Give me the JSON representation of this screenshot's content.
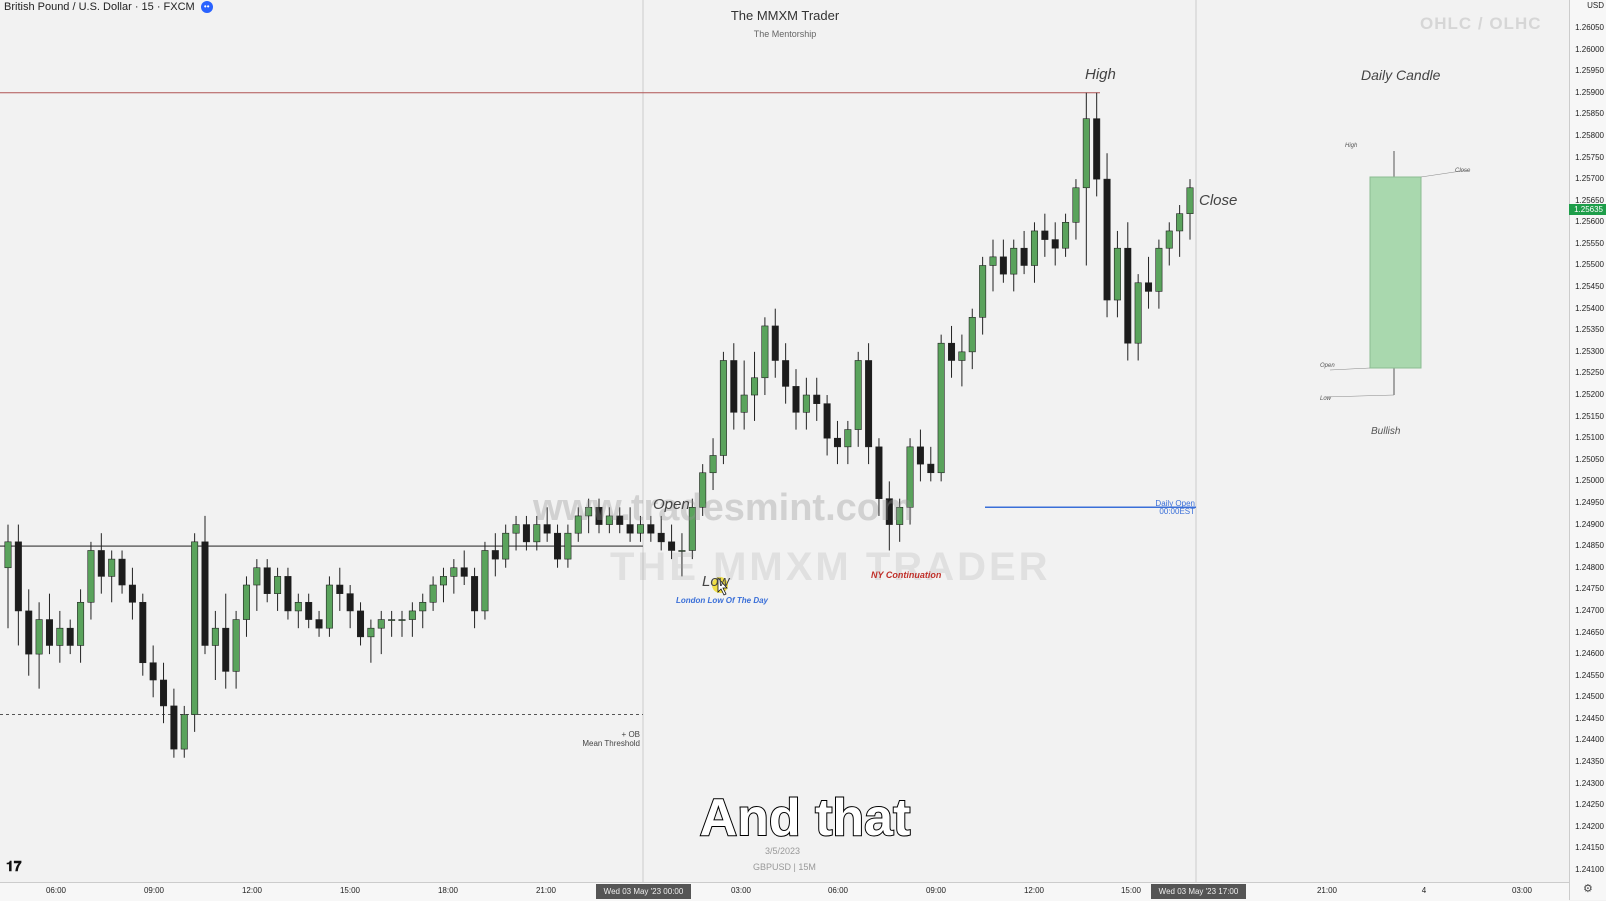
{
  "header": {
    "symbol_title": "British Pound / U.S. Dollar · 15 · FXCM",
    "symbol_badge": "••",
    "watermark_title": "The MMXM Trader",
    "watermark_subtitle": "The Mentorship",
    "ohlc_watermark": "OHLC / OLHC",
    "currency_label": "USD"
  },
  "annotations": {
    "high": "High",
    "close": "Close",
    "open": "Open",
    "low": "Low",
    "london_low": "London Low Of The Day",
    "ny_continuation": "NY Continuation",
    "daily_open_line1": "Daily Open",
    "daily_open_line2": "00:00EST",
    "ob_line1": "+ OB",
    "ob_line2": "Mean Threshold",
    "overlay_url": "www.tradesmint.com",
    "overlay_brand": "THE MMXM TRADER",
    "date_caption": "3/5/2023",
    "pair_caption": "GBPUSD | 15M"
  },
  "daily_candle": {
    "title": "Daily Candle",
    "high": "High",
    "close": "Close",
    "open": "Open",
    "low": "Low",
    "bias": "Bullish",
    "body_color": "#a9d8ae"
  },
  "price_axis": {
    "labels": [
      "1.26050",
      "1.26000",
      "1.25950",
      "1.25900",
      "1.25850",
      "1.25800",
      "1.25750",
      "1.25700",
      "1.25650",
      "1.25600",
      "1.25550",
      "1.25500",
      "1.25450",
      "1.25400",
      "1.25350",
      "1.25300",
      "1.25250",
      "1.25200",
      "1.25150",
      "1.25100",
      "1.25050",
      "1.25000",
      "1.24950",
      "1.24900",
      "1.24850",
      "1.24800",
      "1.24750",
      "1.24700",
      "1.24650",
      "1.24600",
      "1.24550",
      "1.24500",
      "1.24450",
      "1.24400",
      "1.24350",
      "1.24300",
      "1.24250",
      "1.24200",
      "1.24150",
      "1.24100"
    ],
    "current_price": "1.25635"
  },
  "time_axis": {
    "labels": [
      {
        "text": "06:00"
      },
      {
        "text": "09:00"
      },
      {
        "text": "12:00"
      },
      {
        "text": "15:00"
      },
      {
        "text": "18:00"
      },
      {
        "text": "21:00"
      },
      {
        "text": "03:00"
      },
      {
        "text": "06:00"
      },
      {
        "text": "09:00"
      },
      {
        "text": "12:00"
      },
      {
        "text": "15:00"
      },
      {
        "text": "21:00"
      },
      {
        "text": "4"
      },
      {
        "text": "03:00"
      }
    ],
    "highlight_start": "Wed 03 May '23   00:00",
    "highlight_end": "Wed 03 May '23   17:00"
  },
  "colors": {
    "bull": "#5aa35c",
    "bear": "#1c1c1c",
    "high_line": "#b05555",
    "daily_open_line": "#3a6fd8",
    "london_low_text": "#3a6fd8",
    "ny_text": "#c0302a",
    "ob_line": "#555555",
    "session_line": "#cccccc"
  },
  "subtitle": "And that",
  "chart_data": {
    "type": "candlestick",
    "symbol": "GBPUSD",
    "timeframe": "15M",
    "ylim": [
      1.241,
      1.2607
    ],
    "levels": {
      "high": 1.259,
      "daily_open": 1.2494,
      "ob_mean_threshold": 1.2446,
      "range_line": 1.2485
    },
    "candles": [
      [
        1.248,
        1.249,
        1.2466,
        1.2486
      ],
      [
        1.2486,
        1.249,
        1.2462,
        1.247
      ],
      [
        1.247,
        1.2475,
        1.2455,
        1.246
      ],
      [
        1.246,
        1.2472,
        1.2452,
        1.2468
      ],
      [
        1.2468,
        1.2474,
        1.246,
        1.2462
      ],
      [
        1.2462,
        1.247,
        1.2458,
        1.2466
      ],
      [
        1.2466,
        1.2468,
        1.246,
        1.2462
      ],
      [
        1.2462,
        1.2475,
        1.2458,
        1.2472
      ],
      [
        1.2472,
        1.2486,
        1.2468,
        1.2484
      ],
      [
        1.2484,
        1.2488,
        1.2474,
        1.2478
      ],
      [
        1.2478,
        1.2484,
        1.2472,
        1.2482
      ],
      [
        1.2482,
        1.2484,
        1.2474,
        1.2476
      ],
      [
        1.2476,
        1.248,
        1.2468,
        1.2472
      ],
      [
        1.2472,
        1.2474,
        1.2455,
        1.2458
      ],
      [
        1.2458,
        1.2462,
        1.245,
        1.2454
      ],
      [
        1.2454,
        1.2458,
        1.2444,
        1.2448
      ],
      [
        1.2448,
        1.2452,
        1.2436,
        1.2438
      ],
      [
        1.2438,
        1.2448,
        1.2436,
        1.2446
      ],
      [
        1.2446,
        1.2488,
        1.2442,
        1.2486
      ],
      [
        1.2486,
        1.2492,
        1.246,
        1.2462
      ],
      [
        1.2462,
        1.247,
        1.2454,
        1.2466
      ],
      [
        1.2466,
        1.2474,
        1.2452,
        1.2456
      ],
      [
        1.2456,
        1.247,
        1.2452,
        1.2468
      ],
      [
        1.2468,
        1.2478,
        1.2464,
        1.2476
      ],
      [
        1.2476,
        1.2482,
        1.247,
        1.248
      ],
      [
        1.248,
        1.2482,
        1.2472,
        1.2474
      ],
      [
        1.2474,
        1.248,
        1.247,
        1.2478
      ],
      [
        1.2478,
        1.248,
        1.2468,
        1.247
      ],
      [
        1.247,
        1.2474,
        1.2466,
        1.2472
      ],
      [
        1.2472,
        1.2474,
        1.2466,
        1.2468
      ],
      [
        1.2468,
        1.247,
        1.2464,
        1.2466
      ],
      [
        1.2466,
        1.2478,
        1.2464,
        1.2476
      ],
      [
        1.2476,
        1.248,
        1.247,
        1.2474
      ],
      [
        1.2474,
        1.2476,
        1.2466,
        1.247
      ],
      [
        1.247,
        1.2472,
        1.2462,
        1.2464
      ],
      [
        1.2464,
        1.2468,
        1.2458,
        1.2466
      ],
      [
        1.2466,
        1.247,
        1.246,
        1.2468
      ],
      [
        1.2468,
        1.247,
        1.2464,
        1.2468
      ],
      [
        1.2468,
        1.247,
        1.2464,
        1.2468
      ],
      [
        1.2468,
        1.2472,
        1.2464,
        1.247
      ],
      [
        1.247,
        1.2474,
        1.2466,
        1.2472
      ],
      [
        1.2472,
        1.2478,
        1.247,
        1.2476
      ],
      [
        1.2476,
        1.248,
        1.2472,
        1.2478
      ],
      [
        1.2478,
        1.2482,
        1.2474,
        1.248
      ],
      [
        1.248,
        1.2484,
        1.2476,
        1.2478
      ],
      [
        1.2478,
        1.248,
        1.2466,
        1.247
      ],
      [
        1.247,
        1.2486,
        1.2468,
        1.2484
      ],
      [
        1.2484,
        1.2488,
        1.2478,
        1.2482
      ],
      [
        1.2482,
        1.249,
        1.248,
        1.2488
      ],
      [
        1.2488,
        1.2492,
        1.2484,
        1.249
      ],
      [
        1.249,
        1.2492,
        1.2484,
        1.2486
      ],
      [
        1.2486,
        1.2492,
        1.2484,
        1.249
      ],
      [
        1.249,
        1.2494,
        1.2486,
        1.2488
      ],
      [
        1.2488,
        1.249,
        1.248,
        1.2482
      ],
      [
        1.2482,
        1.249,
        1.248,
        1.2488
      ],
      [
        1.2488,
        1.2494,
        1.2486,
        1.2492
      ],
      [
        1.2492,
        1.2496,
        1.2488,
        1.2494
      ],
      [
        1.2494,
        1.2496,
        1.2488,
        1.249
      ],
      [
        1.249,
        1.2494,
        1.2488,
        1.2492
      ],
      [
        1.2492,
        1.2494,
        1.2488,
        1.249
      ],
      [
        1.249,
        1.2494,
        1.2486,
        1.2488
      ],
      [
        1.2488,
        1.2492,
        1.2486,
        1.249
      ],
      [
        1.249,
        1.2492,
        1.2486,
        1.2488
      ],
      [
        1.2488,
        1.2492,
        1.2484,
        1.2486
      ],
      [
        1.2486,
        1.249,
        1.2482,
        1.2484
      ],
      [
        1.2484,
        1.2488,
        1.2478,
        1.2484
      ],
      [
        1.2484,
        1.2496,
        1.2482,
        1.2494
      ],
      [
        1.2494,
        1.2504,
        1.2492,
        1.2502
      ],
      [
        1.2502,
        1.251,
        1.2498,
        1.2506
      ],
      [
        1.2506,
        1.253,
        1.2504,
        1.2528
      ],
      [
        1.2528,
        1.2532,
        1.2512,
        1.2516
      ],
      [
        1.2516,
        1.2528,
        1.2512,
        1.252
      ],
      [
        1.252,
        1.253,
        1.2514,
        1.2524
      ],
      [
        1.2524,
        1.2538,
        1.252,
        1.2536
      ],
      [
        1.2536,
        1.254,
        1.2524,
        1.2528
      ],
      [
        1.2528,
        1.2532,
        1.2518,
        1.2522
      ],
      [
        1.2522,
        1.2526,
        1.2512,
        1.2516
      ],
      [
        1.2516,
        1.2524,
        1.2512,
        1.252
      ],
      [
        1.252,
        1.2524,
        1.2514,
        1.2518
      ],
      [
        1.2518,
        1.252,
        1.2506,
        1.251
      ],
      [
        1.251,
        1.2514,
        1.2504,
        1.2508
      ],
      [
        1.2508,
        1.2514,
        1.2504,
        1.2512
      ],
      [
        1.2512,
        1.253,
        1.2508,
        1.2528
      ],
      [
        1.2528,
        1.2532,
        1.2504,
        1.2508
      ],
      [
        1.2508,
        1.251,
        1.2492,
        1.2496
      ],
      [
        1.2496,
        1.25,
        1.2484,
        1.249
      ],
      [
        1.249,
        1.2496,
        1.2486,
        1.2494
      ],
      [
        1.2494,
        1.251,
        1.249,
        1.2508
      ],
      [
        1.2508,
        1.2512,
        1.25,
        1.2504
      ],
      [
        1.2504,
        1.2508,
        1.25,
        1.2502
      ],
      [
        1.2502,
        1.2534,
        1.25,
        1.2532
      ],
      [
        1.2532,
        1.2536,
        1.2524,
        1.2528
      ],
      [
        1.2528,
        1.2534,
        1.2522,
        1.253
      ],
      [
        1.253,
        1.254,
        1.2526,
        1.2538
      ],
      [
        1.2538,
        1.2552,
        1.2534,
        1.255
      ],
      [
        1.255,
        1.2556,
        1.2544,
        1.2552
      ],
      [
        1.2552,
        1.2556,
        1.2546,
        1.2548
      ],
      [
        1.2548,
        1.2556,
        1.2544,
        1.2554
      ],
      [
        1.2554,
        1.2558,
        1.2548,
        1.255
      ],
      [
        1.255,
        1.256,
        1.2546,
        1.2558
      ],
      [
        1.2558,
        1.2562,
        1.2552,
        1.2556
      ],
      [
        1.2556,
        1.256,
        1.255,
        1.2554
      ],
      [
        1.2554,
        1.2562,
        1.2552,
        1.256
      ],
      [
        1.256,
        1.257,
        1.2556,
        1.2568
      ],
      [
        1.2568,
        1.259,
        1.255,
        1.2584
      ],
      [
        1.2584,
        1.259,
        1.2566,
        1.257
      ],
      [
        1.257,
        1.2576,
        1.2538,
        1.2542
      ],
      [
        1.2542,
        1.2558,
        1.2538,
        1.2554
      ],
      [
        1.2554,
        1.256,
        1.2528,
        1.2532
      ],
      [
        1.2532,
        1.2548,
        1.2528,
        1.2546
      ],
      [
        1.2546,
        1.2552,
        1.254,
        1.2544
      ],
      [
        1.2544,
        1.2556,
        1.254,
        1.2554
      ],
      [
        1.2554,
        1.256,
        1.255,
        1.2558
      ],
      [
        1.2558,
        1.2564,
        1.2552,
        1.2562
      ],
      [
        1.2562,
        1.257,
        1.2556,
        1.2568
      ]
    ]
  }
}
